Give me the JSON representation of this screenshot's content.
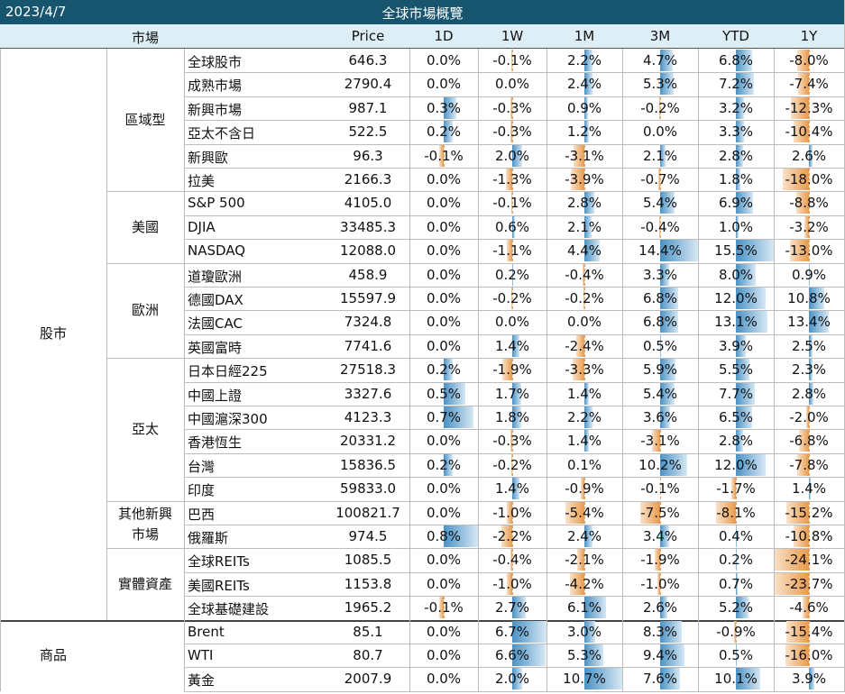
{
  "title": {
    "date": "2023/4/7",
    "text": "全球市場概覽"
  },
  "headers": {
    "market": "市場",
    "price": "Price",
    "d1": "1D",
    "w1": "1W",
    "m1": "1M",
    "m3": "3M",
    "ytd": "YTD",
    "y1": "1Y"
  },
  "groups": [
    {
      "name": "股市",
      "subgroups": [
        {
          "name": "區域型",
          "rows": [
            {
              "name": "全球股市",
              "price": "646.3",
              "vals": [
                "0.0%",
                "-0.1%",
                "2.2%",
                "4.7%",
                "6.8%",
                "-8.0%"
              ]
            },
            {
              "name": "成熟市場",
              "price": "2790.4",
              "vals": [
                "0.0%",
                "0.0%",
                "2.4%",
                "5.3%",
                "7.2%",
                "-7.4%"
              ]
            },
            {
              "name": "新興市場",
              "price": "987.1",
              "vals": [
                "0.3%",
                "-0.3%",
                "0.9%",
                "-0.2%",
                "3.2%",
                "-12.3%"
              ]
            },
            {
              "name": "亞太不含日",
              "price": "522.5",
              "vals": [
                "0.2%",
                "-0.3%",
                "1.2%",
                "0.0%",
                "3.3%",
                "-10.4%"
              ]
            },
            {
              "name": "新興歐",
              "price": "96.3",
              "vals": [
                "-0.1%",
                "2.0%",
                "-3.1%",
                "2.1%",
                "2.8%",
                "2.6%"
              ]
            },
            {
              "name": "拉美",
              "price": "2166.3",
              "vals": [
                "0.0%",
                "-1.3%",
                "-3.9%",
                "-0.7%",
                "1.8%",
                "-18.0%"
              ]
            }
          ]
        },
        {
          "name": "美國",
          "rows": [
            {
              "name": "S&P 500",
              "price": "4105.0",
              "vals": [
                "0.0%",
                "-0.1%",
                "2.8%",
                "5.4%",
                "6.9%",
                "-8.8%"
              ]
            },
            {
              "name": "DJIA",
              "price": "33485.3",
              "vals": [
                "0.0%",
                "0.6%",
                "2.1%",
                "-0.4%",
                "1.0%",
                "-3.2%"
              ]
            },
            {
              "name": "NASDAQ",
              "price": "12088.0",
              "vals": [
                "0.0%",
                "-1.1%",
                "4.4%",
                "14.4%",
                "15.5%",
                "-13.0%"
              ]
            }
          ]
        },
        {
          "name": "歐洲",
          "rows": [
            {
              "name": "道瓊歐洲",
              "price": "458.9",
              "vals": [
                "0.0%",
                "0.2%",
                "-0.4%",
                "3.3%",
                "8.0%",
                "0.9%"
              ]
            },
            {
              "name": "德國DAX",
              "price": "15597.9",
              "vals": [
                "0.0%",
                "-0.2%",
                "-0.2%",
                "6.8%",
                "12.0%",
                "10.8%"
              ]
            },
            {
              "name": "法國CAC",
              "price": "7324.8",
              "vals": [
                "0.0%",
                "0.0%",
                "0.0%",
                "6.8%",
                "13.1%",
                "13.4%"
              ]
            },
            {
              "name": "英國富時",
              "price": "7741.6",
              "vals": [
                "0.0%",
                "1.4%",
                "-2.4%",
                "0.5%",
                "3.9%",
                "2.5%"
              ]
            }
          ]
        },
        {
          "name": "亞太",
          "rows": [
            {
              "name": "日本日經225",
              "price": "27518.3",
              "vals": [
                "0.2%",
                "-1.9%",
                "-3.3%",
                "5.9%",
                "5.5%",
                "2.3%"
              ]
            },
            {
              "name": "中國上證",
              "price": "3327.6",
              "vals": [
                "0.5%",
                "1.7%",
                "1.4%",
                "5.4%",
                "7.7%",
                "2.8%"
              ]
            },
            {
              "name": "中國滬深300",
              "price": "4123.3",
              "vals": [
                "0.7%",
                "1.8%",
                "2.2%",
                "3.6%",
                "6.5%",
                "-2.0%"
              ]
            },
            {
              "name": "香港恆生",
              "price": "20331.2",
              "vals": [
                "0.0%",
                "-0.3%",
                "1.4%",
                "-3.1%",
                "2.8%",
                "-6.8%"
              ]
            },
            {
              "name": "台灣",
              "price": "15836.5",
              "vals": [
                "0.2%",
                "-0.2%",
                "0.1%",
                "10.2%",
                "12.0%",
                "-7.8%"
              ]
            },
            {
              "name": "印度",
              "price": "59833.0",
              "vals": [
                "0.0%",
                "1.4%",
                "-0.9%",
                "-0.1%",
                "-1.7%",
                "1.4%"
              ]
            }
          ]
        },
        {
          "name": "其他新興\n市場",
          "rows": [
            {
              "name": "巴西",
              "price": "100821.7",
              "vals": [
                "0.0%",
                "-1.0%",
                "-5.4%",
                "-7.5%",
                "-8.1%",
                "-15.2%"
              ]
            },
            {
              "name": "俄羅斯",
              "price": "974.5",
              "vals": [
                "0.8%",
                "-2.2%",
                "2.4%",
                "3.4%",
                "0.4%",
                "-10.8%"
              ]
            }
          ]
        },
        {
          "name": "實體資產",
          "rows": [
            {
              "name": "全球REITs",
              "price": "1085.5",
              "vals": [
                "0.0%",
                "-0.4%",
                "-2.1%",
                "-1.9%",
                "0.2%",
                "-24.1%"
              ]
            },
            {
              "name": "美國REITs",
              "price": "1153.8",
              "vals": [
                "0.0%",
                "-1.0%",
                "-4.2%",
                "-1.0%",
                "0.7%",
                "-23.7%"
              ]
            },
            {
              "name": "全球基礎建設",
              "price": "1965.2",
              "vals": [
                "-0.1%",
                "2.7%",
                "6.1%",
                "2.6%",
                "5.2%",
                "-4.6%"
              ]
            }
          ]
        }
      ]
    },
    {
      "name": "商品",
      "subgroups": [
        {
          "name": "",
          "rows": [
            {
              "name": "Brent",
              "price": "85.1",
              "vals": [
                "0.0%",
                "6.7%",
                "3.0%",
                "8.3%",
                "-0.9%",
                "-15.4%"
              ]
            },
            {
              "name": "WTI",
              "price": "80.7",
              "vals": [
                "0.0%",
                "6.6%",
                "5.3%",
                "9.4%",
                "0.5%",
                "-16.0%"
              ]
            },
            {
              "name": "黃金",
              "price": "2007.9",
              "vals": [
                "0.0%",
                "2.0%",
                "10.7%",
                "7.6%",
                "10.1%",
                "3.9%"
              ]
            }
          ]
        }
      ]
    }
  ],
  "colors": {
    "title_bg": "#17556f",
    "header_bg": "#ddeef7",
    "positive_bar": "#4a92c4",
    "negative_bar": "#e89a4a"
  }
}
